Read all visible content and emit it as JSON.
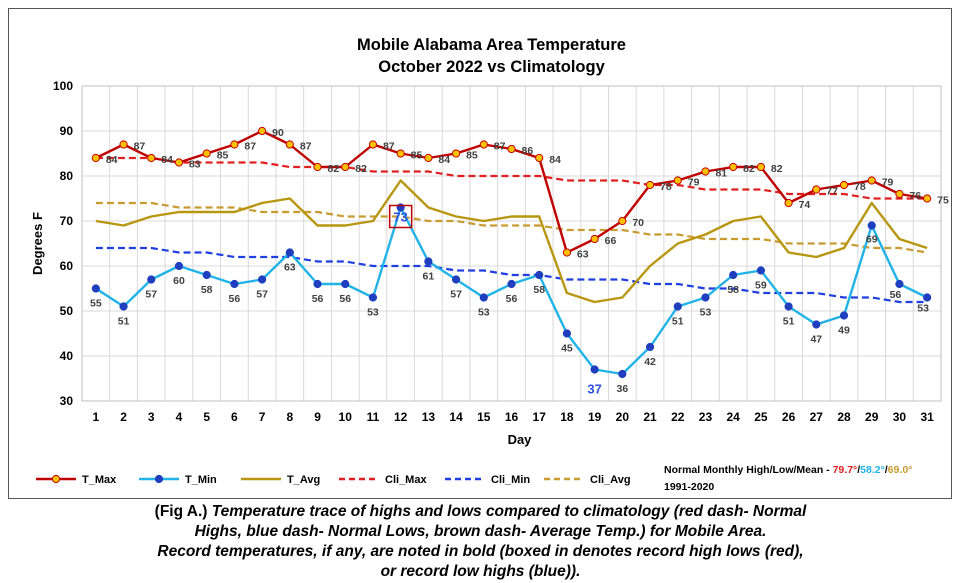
{
  "chart_data": {
    "type": "line",
    "title_line1": "Mobile Alabama Area Temperature",
    "title_line2": "October 2022 vs Climatology",
    "xlabel": "Day",
    "ylabel": "Degrees F",
    "ylim": [
      30,
      100
    ],
    "yticks": [
      "30",
      "40",
      "50",
      "60",
      "70",
      "80",
      "90",
      "100"
    ],
    "grid": "on",
    "legend_position": "bottom",
    "categories": [
      "1",
      "2",
      "3",
      "4",
      "5",
      "6",
      "7",
      "8",
      "9",
      "10",
      "11",
      "12",
      "13",
      "14",
      "15",
      "16",
      "17",
      "18",
      "19",
      "20",
      "21",
      "22",
      "23",
      "24",
      "25",
      "26",
      "27",
      "28",
      "29",
      "30",
      "31"
    ],
    "series": [
      {
        "name": "T_Max",
        "color": "#c00000",
        "style": "solid-marker",
        "marker_fill": "#ffc000",
        "values": [
          84,
          87,
          84,
          83,
          85,
          87,
          90,
          87,
          82,
          82,
          87,
          85,
          84,
          85,
          87,
          86,
          84,
          63,
          66,
          70,
          78,
          79,
          81,
          82,
          82,
          74,
          77,
          78,
          79,
          76,
          75
        ]
      },
      {
        "name": "T_Min",
        "color": "#21b3e8",
        "style": "solid-marker",
        "marker_fill": "#1f3fbf",
        "values": [
          55,
          51,
          57,
          60,
          58,
          56,
          57,
          63,
          56,
          56,
          53,
          73,
          61,
          57,
          53,
          56,
          58,
          45,
          37,
          36,
          42,
          51,
          53,
          58,
          59,
          51,
          47,
          49,
          69,
          56,
          53
        ]
      },
      {
        "name": "T_Avg",
        "color": "#b8960f",
        "style": "solid",
        "values": [
          70,
          69,
          71,
          72,
          72,
          72,
          74,
          75,
          69,
          69,
          70,
          79,
          73,
          71,
          70,
          71,
          71,
          54,
          52,
          53,
          60,
          65,
          67,
          70,
          71,
          63,
          62,
          64,
          74,
          66,
          64
        ]
      },
      {
        "name": "Cli_Max",
        "color": "#e02020",
        "style": "dash",
        "values": [
          84,
          84,
          84,
          83,
          83,
          83,
          83,
          82,
          82,
          82,
          81,
          81,
          81,
          80,
          80,
          80,
          80,
          79,
          79,
          79,
          78,
          78,
          77,
          77,
          77,
          76,
          76,
          76,
          75,
          75,
          75
        ]
      },
      {
        "name": "Cli_Min",
        "color": "#1f3fe0",
        "style": "dash",
        "values": [
          64,
          64,
          64,
          63,
          63,
          62,
          62,
          62,
          61,
          61,
          60,
          60,
          60,
          59,
          59,
          58,
          58,
          57,
          57,
          57,
          56,
          56,
          55,
          55,
          54,
          54,
          54,
          53,
          53,
          52,
          52
        ]
      },
      {
        "name": "Cli_Avg",
        "color": "#c89a30",
        "style": "dash",
        "values": [
          74,
          74,
          74,
          73,
          73,
          73,
          72,
          72,
          72,
          71,
          71,
          71,
          70,
          70,
          69,
          69,
          69,
          68,
          68,
          68,
          67,
          67,
          66,
          66,
          66,
          65,
          65,
          65,
          64,
          64,
          63
        ]
      }
    ],
    "data_labels_tmax": [
      "84",
      "87",
      "84",
      "83",
      "85",
      "87",
      "90",
      "87",
      "82",
      "82",
      "87",
      "85",
      "84",
      "85",
      "87",
      "86",
      "84",
      "63",
      "66",
      "70",
      "78",
      "79",
      "81",
      "82",
      "82",
      "74",
      "77",
      "78",
      "79",
      "76",
      "75"
    ],
    "data_labels_tmin": [
      "55",
      "51",
      "57",
      "60",
      "58",
      "56",
      "57",
      "63",
      "56",
      "56",
      "53",
      "73",
      "61",
      "57",
      "53",
      "56",
      "58",
      "45",
      "37",
      "36",
      "42",
      "51",
      "53",
      "58",
      "59",
      "51",
      "47",
      "49",
      "69",
      "56",
      "53"
    ],
    "record_high_low": {
      "day": 12,
      "value": "73",
      "box_color": "#c00000",
      "text_color": "#3050e0"
    },
    "record_low_high_label": {
      "day": 19,
      "value": "37",
      "color": "#3050e0"
    },
    "normals": {
      "label": "Normal Monthly High/Low/Mean - ",
      "high": "79.7°",
      "low": "58.2°",
      "mean": "69.0°",
      "sep": "/",
      "period": "1991-2020",
      "high_color": "#e02020",
      "low_color": "#21b3e8",
      "mean_color": "#c89a30"
    }
  },
  "caption": {
    "fig_label": "(Fig A.)",
    "line1": " Temperature trace of highs and lows compared to climatology (red dash- Normal",
    "line2": "Highs, blue dash- Normal Lows, brown dash- Average Temp.) for Mobile Area.",
    "line3": "Record temperatures, if any, are noted in bold (boxed in denotes record high lows (red),",
    "line4": "or record low highs (blue))."
  }
}
